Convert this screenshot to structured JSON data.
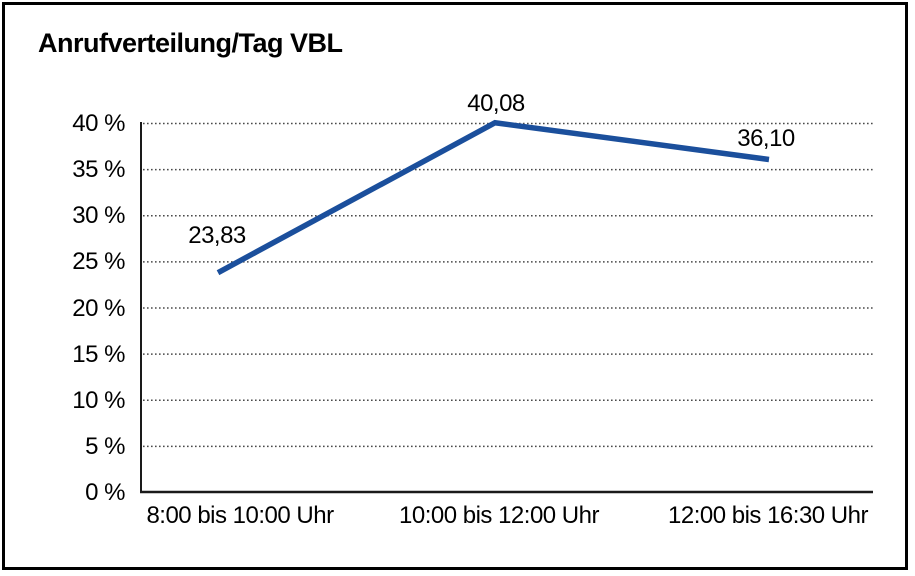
{
  "title": "Anrufverteilung/Tag VBL",
  "colors": {
    "line": "#1B4F9C",
    "text": "#000000",
    "grid": "#4a4a4a",
    "axis": "#1a1a1a",
    "border": "#000000",
    "background": "#ffffff"
  },
  "chart_data": {
    "type": "line",
    "title": "Anrufverteilung/Tag VBL",
    "categories": [
      "8:00 bis 10:00 Uhr",
      "10:00 bis 12:00 Uhr",
      "12:00 bis 16:30 Uhr"
    ],
    "series": [
      {
        "name": "Anrufverteilung/Tag VBL",
        "values": [
          23.83,
          40.08,
          36.1
        ]
      }
    ],
    "value_labels": [
      "23,83",
      "40,08",
      "36,10"
    ],
    "y_ticks": [
      0,
      5,
      10,
      15,
      20,
      25,
      30,
      35,
      40
    ],
    "y_tick_labels": [
      "0 %",
      "5 %",
      "10 %",
      "15 %",
      "20 %",
      "25 %",
      "30 %",
      "35 %",
      "40 %"
    ],
    "ylim": [
      0,
      40
    ],
    "xlabel": "",
    "ylabel": "",
    "grid": "horizontal-dotted",
    "legend": "none",
    "line_color": "#1B4F9C",
    "markers": "none"
  }
}
